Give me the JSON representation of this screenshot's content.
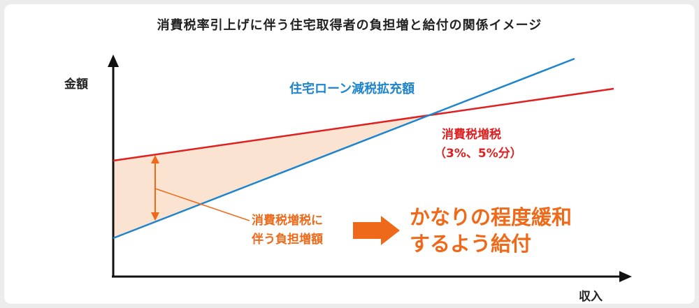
{
  "title": "消費税率引上げに伴う住宅取得者の負担増と給付の関係イメージ",
  "axes": {
    "y_label": "金額",
    "x_label": "収入"
  },
  "labels": {
    "loan_reduction": "住宅ローン減税拡充額",
    "tax_increase_line1": "消費税増税",
    "tax_increase_line2": "（3%、5%分）",
    "burden_line1": "消費税増税に",
    "burden_line2": "伴う負担増額",
    "relief_line1": "かなりの程度緩和",
    "relief_line2": "するよう給付"
  },
  "colors": {
    "blue": "#1e84cc",
    "red": "#e02020",
    "orange": "#ee6a1a",
    "fill": "#fbe3d1",
    "axis": "#111111"
  }
}
